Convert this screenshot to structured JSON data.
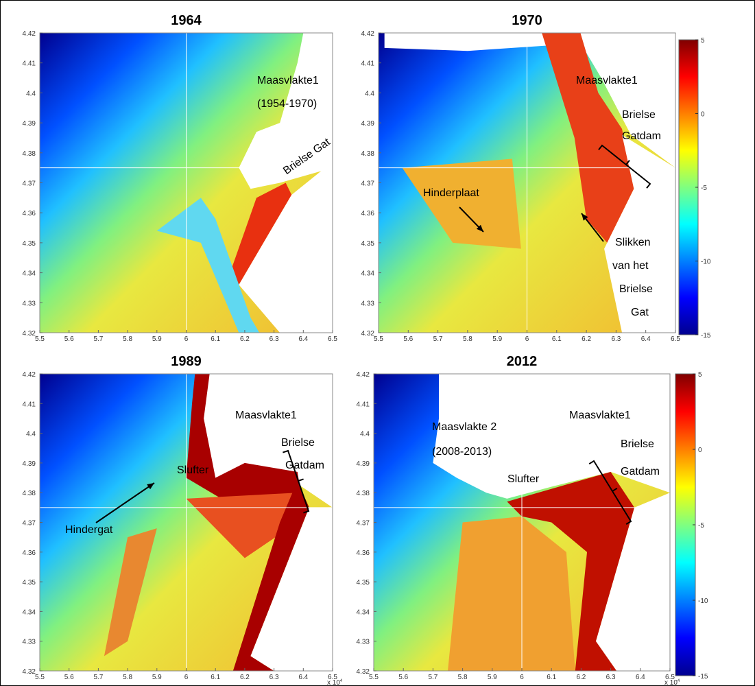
{
  "panels": [
    {
      "title": "1964",
      "xlim": [
        5.5,
        6.5
      ],
      "ylim": [
        4.32,
        4.42
      ],
      "xticks": [
        5.5,
        5.6,
        5.7,
        5.8,
        5.9,
        6,
        6.1,
        6.2,
        6.3,
        6.4,
        6.5
      ],
      "yticks": [
        4.32,
        4.33,
        4.34,
        4.35,
        4.36,
        4.37,
        4.38,
        4.39,
        4.4,
        4.41,
        4.42
      ],
      "annotations": [
        "Maasvlakte1",
        "(1954-1970)",
        "Brielse Gat"
      ]
    },
    {
      "title": "1970",
      "xlim": [
        5.5,
        6.5
      ],
      "ylim": [
        4.32,
        4.42
      ],
      "xticks": [
        5.5,
        5.6,
        5.7,
        5.8,
        5.9,
        6,
        6.1,
        6.2,
        6.3,
        6.4,
        6.5
      ],
      "yticks": [
        4.32,
        4.33,
        4.34,
        4.35,
        4.36,
        4.37,
        4.38,
        4.39,
        4.4,
        4.41,
        4.42
      ],
      "annotations": [
        "Maasvlakte1",
        "Brielse",
        "Gatdam",
        "Hinderplaat",
        "Slikken",
        "van het",
        "Brielse",
        "Gat"
      ],
      "colorbar": {
        "lim": [
          -15,
          5
        ],
        "ticks": [
          5,
          0,
          -5,
          -10,
          -15
        ]
      }
    },
    {
      "title": "1989",
      "xlim": [
        5.5,
        6.5
      ],
      "ylim": [
        4.32,
        4.42
      ],
      "xticks": [
        5.5,
        5.6,
        5.7,
        5.8,
        5.9,
        6,
        6.1,
        6.2,
        6.3,
        6.4,
        6.5
      ],
      "yticks": [
        4.32,
        4.33,
        4.34,
        4.35,
        4.36,
        4.37,
        4.38,
        4.39,
        4.4,
        4.41,
        4.42
      ],
      "annotations": [
        "Maasvlakte1",
        "Brielse",
        "Gatdam",
        "Slufter",
        "Hindergat"
      ],
      "x_scale": {
        "base": "x 10",
        "exponent": "4"
      }
    },
    {
      "title": "2012",
      "xlim": [
        5.5,
        6.5
      ],
      "ylim": [
        4.32,
        4.42
      ],
      "xticks": [
        5.5,
        5.6,
        5.7,
        5.8,
        5.9,
        6,
        6.1,
        6.2,
        6.3,
        6.4,
        6.5
      ],
      "yticks": [
        4.32,
        4.33,
        4.34,
        4.35,
        4.36,
        4.37,
        4.38,
        4.39,
        4.4,
        4.41,
        4.42
      ],
      "annotations": [
        "Maasvlakte 2",
        "(2008-2013)",
        "Maasvlakte1",
        "Brielse",
        "Gatdam",
        "Slufter"
      ],
      "colorbar": {
        "lim": [
          -15,
          5
        ],
        "ticks": [
          5,
          0,
          -5,
          -10,
          -15
        ]
      },
      "x_scale": {
        "base": "x 10",
        "exponent": "4"
      }
    }
  ]
}
